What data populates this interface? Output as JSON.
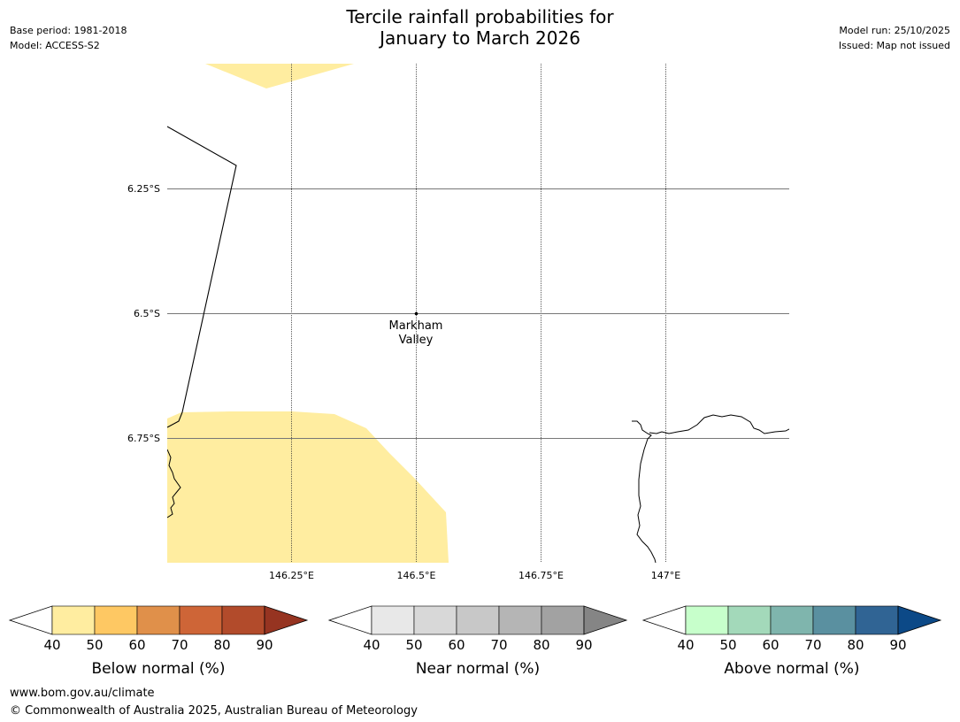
{
  "title": {
    "line1": "Tercile rainfall probabilities for",
    "line2": "January to March 2026"
  },
  "meta_left": {
    "base_period": "Base period: 1981-2018",
    "model": "Model: ACCESS-S2"
  },
  "meta_right": {
    "model_run": "Model run: 25/10/2025",
    "issued": "Issued: Map not issued"
  },
  "map": {
    "lat_labels": [
      "6.25°S",
      "6.5°S",
      "6.75°S"
    ],
    "lon_labels": [
      "146.25°E",
      "146.5°E",
      "146.75°E",
      "147°E"
    ],
    "place": {
      "name_line1": "Markham",
      "name_line2": "Valley",
      "lon": 146.5,
      "lat": -6.5
    },
    "shaded_class": "below-normal 40-50%"
  },
  "colorbars": [
    {
      "label": "Below normal (%)",
      "ticks": [
        "40",
        "50",
        "60",
        "70",
        "80",
        "90"
      ],
      "colors": [
        "#ffeda0",
        "#fec863",
        "#e0904a",
        "#ce6537",
        "#b24b2b",
        "#963421"
      ]
    },
    {
      "label": "Near normal (%)",
      "ticks": [
        "40",
        "50",
        "60",
        "70",
        "80",
        "90"
      ],
      "colors": [
        "#e8e8e8",
        "#d8d8d8",
        "#c8c8c8",
        "#b5b5b5",
        "#a2a2a2",
        "#858585"
      ]
    },
    {
      "label": "Above normal (%)",
      "ticks": [
        "40",
        "50",
        "60",
        "70",
        "80",
        "90"
      ],
      "colors": [
        "#c7ffcb",
        "#a3d9ba",
        "#7fb5ad",
        "#5a90a0",
        "#306494",
        "#0c4987"
      ]
    }
  ],
  "footer": {
    "url": "www.bom.gov.au/climate",
    "copyright": "© Commonwealth of Australia 2025, Australian Bureau of Meteorology"
  }
}
